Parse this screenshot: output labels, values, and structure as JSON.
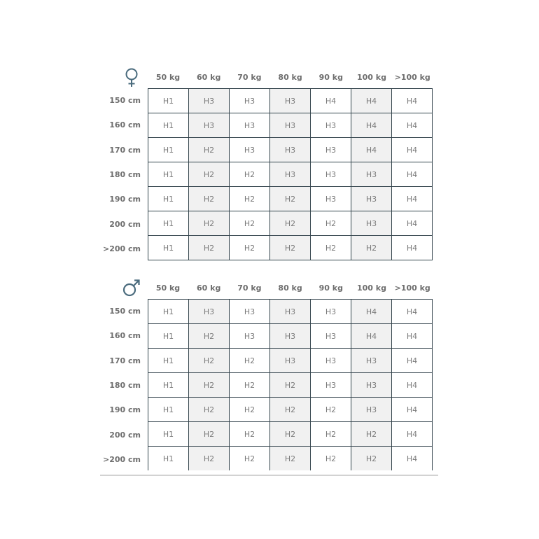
{
  "weights": [
    "50 kg",
    "60 kg",
    "70 kg",
    "80 kg",
    "90 kg",
    "100 kg",
    ">100 kg"
  ],
  "heights": [
    "150 cm",
    "160 cm",
    "170 cm",
    "180 cm",
    "190 cm",
    "200 cm",
    ">200 cm"
  ],
  "colors": {
    "border": "#34454d",
    "shaded_column": "#f1f1f1",
    "symbol": "#4a6b7d",
    "text": "#7a7a7a"
  },
  "tables": [
    {
      "symbol": "female-icon",
      "rows": [
        [
          "H1",
          "H3",
          "H3",
          "H3",
          "H4",
          "H4",
          "H4"
        ],
        [
          "H1",
          "H3",
          "H3",
          "H3",
          "H3",
          "H4",
          "H4"
        ],
        [
          "H1",
          "H2",
          "H3",
          "H3",
          "H3",
          "H4",
          "H4"
        ],
        [
          "H1",
          "H2",
          "H2",
          "H3",
          "H3",
          "H3",
          "H4"
        ],
        [
          "H1",
          "H2",
          "H2",
          "H2",
          "H3",
          "H3",
          "H4"
        ],
        [
          "H1",
          "H2",
          "H2",
          "H2",
          "H2",
          "H3",
          "H4"
        ],
        [
          "H1",
          "H2",
          "H2",
          "H2",
          "H2",
          "H2",
          "H4"
        ]
      ]
    },
    {
      "symbol": "male-icon",
      "rows": [
        [
          "H1",
          "H3",
          "H3",
          "H3",
          "H3",
          "H4",
          "H4"
        ],
        [
          "H1",
          "H2",
          "H3",
          "H3",
          "H3",
          "H4",
          "H4"
        ],
        [
          "H1",
          "H2",
          "H2",
          "H3",
          "H3",
          "H3",
          "H4"
        ],
        [
          "H1",
          "H2",
          "H2",
          "H2",
          "H3",
          "H3",
          "H4"
        ],
        [
          "H1",
          "H2",
          "H2",
          "H2",
          "H2",
          "H3",
          "H4"
        ],
        [
          "H1",
          "H2",
          "H2",
          "H2",
          "H2",
          "H2",
          "H4"
        ],
        [
          "H1",
          "H2",
          "H2",
          "H2",
          "H2",
          "H2",
          "H4"
        ]
      ]
    }
  ]
}
